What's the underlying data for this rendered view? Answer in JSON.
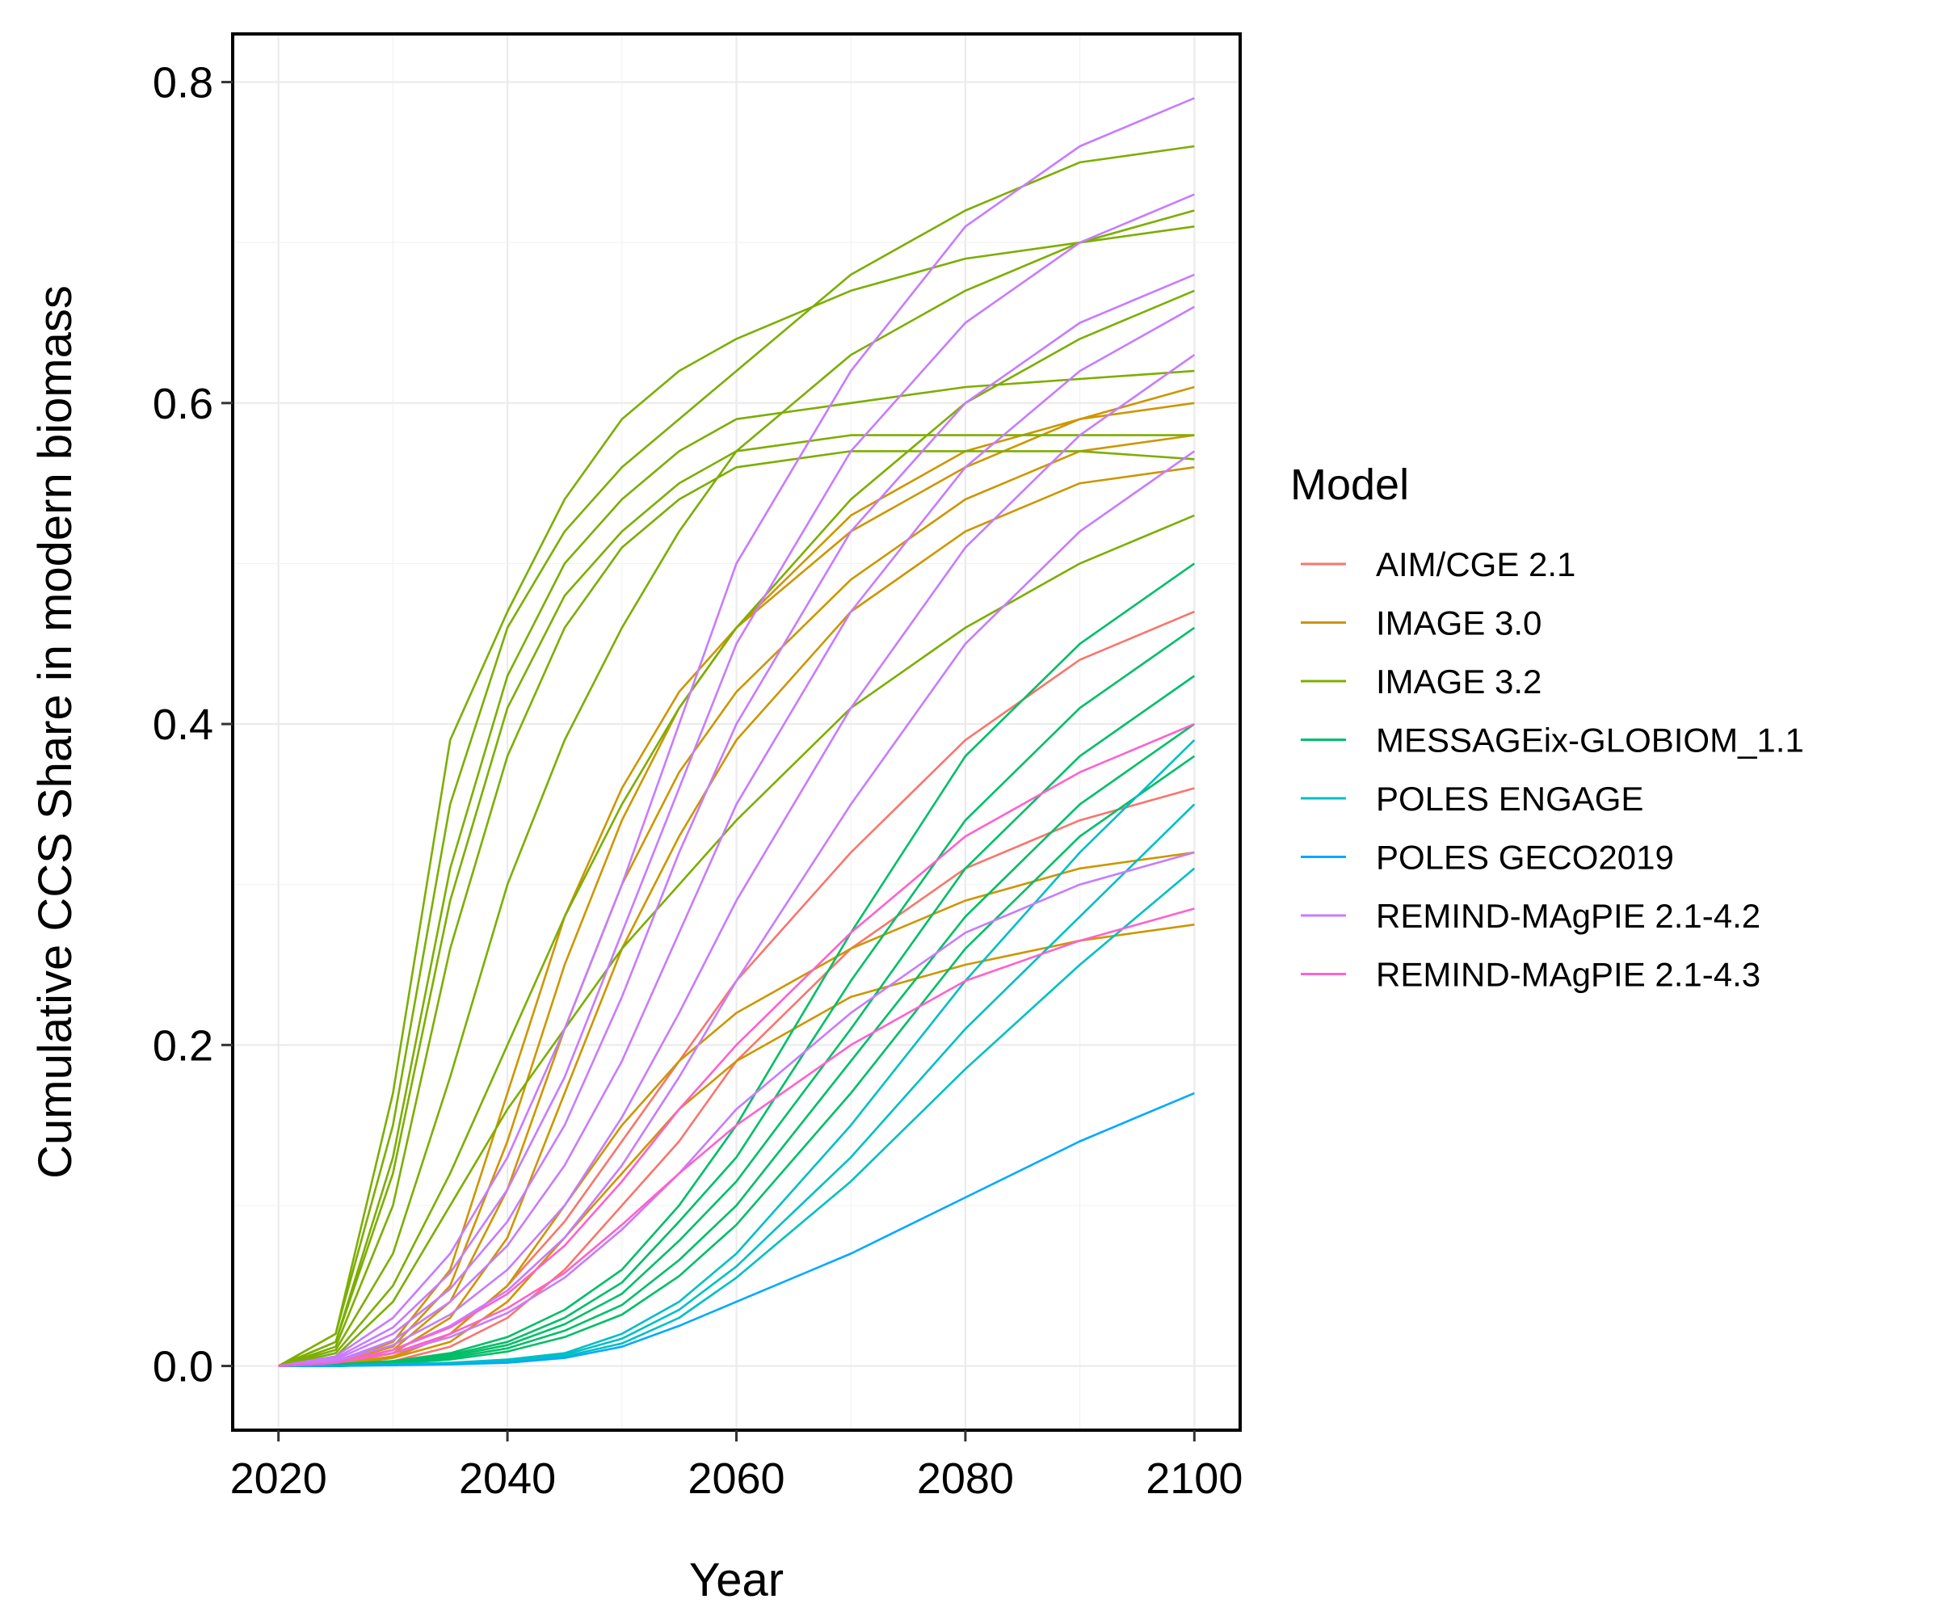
{
  "chart_data": {
    "type": "line",
    "title": "",
    "xlabel": "Year",
    "ylabel": "Cumulative CCS Share in modern biomass",
    "xlim": [
      2016,
      2104
    ],
    "ylim": [
      -0.04,
      0.83
    ],
    "xticks": [
      2020,
      2040,
      2060,
      2080,
      2100
    ],
    "yticks": [
      0.0,
      0.2,
      0.4,
      0.6,
      0.8
    ],
    "xtick_labels": [
      "2020",
      "2040",
      "2060",
      "2080",
      "2100"
    ],
    "ytick_labels": [
      "0.0",
      "0.2",
      "0.4",
      "0.6",
      "0.8"
    ],
    "grid": true,
    "legend": {
      "title": "Model",
      "position": "right",
      "entries": [
        {
          "name": "AIM/CGE 2.1",
          "color": "#F8766D"
        },
        {
          "name": "IMAGE 3.0",
          "color": "#CD9600"
        },
        {
          "name": "IMAGE 3.2",
          "color": "#7CAE00"
        },
        {
          "name": "MESSAGEix-GLOBIOM_1.1",
          "color": "#00BE67"
        },
        {
          "name": "POLES ENGAGE",
          "color": "#00BFC4"
        },
        {
          "name": "POLES GECO2019",
          "color": "#00A9FF"
        },
        {
          "name": "REMIND-MAgPIE 2.1-4.2",
          "color": "#C77CFF"
        },
        {
          "name": "REMIND-MAgPIE 2.1-4.3",
          "color": "#FF61CC"
        }
      ]
    },
    "x": [
      2020,
      2025,
      2030,
      2035,
      2040,
      2045,
      2050,
      2055,
      2060,
      2070,
      2080,
      2090,
      2100
    ],
    "series": [
      {
        "name": "AIM/CGE 2.1",
        "color": "#F8766D",
        "values": [
          0,
          0,
          0.005,
          0.02,
          0.05,
          0.09,
          0.14,
          0.19,
          0.24,
          0.32,
          0.39,
          0.44,
          0.47
        ]
      },
      {
        "name": "AIM/CGE 2.1",
        "color": "#F8766D",
        "values": [
          0,
          0,
          0.003,
          0.012,
          0.03,
          0.06,
          0.1,
          0.14,
          0.19,
          0.26,
          0.31,
          0.34,
          0.36
        ]
      },
      {
        "name": "IMAGE 3.0",
        "color": "#CD9600",
        "values": [
          0,
          0.002,
          0.015,
          0.06,
          0.17,
          0.28,
          0.36,
          0.42,
          0.46,
          0.52,
          0.56,
          0.59,
          0.61
        ]
      },
      {
        "name": "IMAGE 3.0",
        "color": "#CD9600",
        "values": [
          0,
          0.002,
          0.012,
          0.05,
          0.14,
          0.25,
          0.34,
          0.41,
          0.46,
          0.53,
          0.57,
          0.59,
          0.6
        ]
      },
      {
        "name": "IMAGE 3.0",
        "color": "#CD9600",
        "values": [
          0,
          0.001,
          0.01,
          0.04,
          0.11,
          0.21,
          0.3,
          0.37,
          0.42,
          0.49,
          0.54,
          0.57,
          0.58
        ]
      },
      {
        "name": "IMAGE 3.0",
        "color": "#CD9600",
        "values": [
          0,
          0.001,
          0.008,
          0.03,
          0.08,
          0.17,
          0.26,
          0.33,
          0.39,
          0.47,
          0.52,
          0.55,
          0.56
        ]
      },
      {
        "name": "IMAGE 3.0",
        "color": "#CD9600",
        "values": [
          0,
          0.001,
          0.006,
          0.02,
          0.05,
          0.1,
          0.15,
          0.19,
          0.22,
          0.26,
          0.29,
          0.31,
          0.32
        ]
      },
      {
        "name": "IMAGE 3.0",
        "color": "#CD9600",
        "values": [
          0,
          0.001,
          0.005,
          0.015,
          0.04,
          0.08,
          0.12,
          0.16,
          0.19,
          0.23,
          0.25,
          0.265,
          0.275
        ]
      },
      {
        "name": "IMAGE 3.2",
        "color": "#7CAE00",
        "values": [
          0,
          0.02,
          0.17,
          0.39,
          0.47,
          0.54,
          0.59,
          0.62,
          0.64,
          0.67,
          0.69,
          0.7,
          0.71
        ]
      },
      {
        "name": "IMAGE 3.2",
        "color": "#7CAE00",
        "values": [
          0,
          0.02,
          0.15,
          0.35,
          0.46,
          0.52,
          0.56,
          0.59,
          0.62,
          0.68,
          0.72,
          0.75,
          0.76
        ]
      },
      {
        "name": "IMAGE 3.2",
        "color": "#7CAE00",
        "values": [
          0,
          0.015,
          0.13,
          0.31,
          0.43,
          0.5,
          0.54,
          0.57,
          0.59,
          0.6,
          0.61,
          0.615,
          0.62
        ]
      },
      {
        "name": "IMAGE 3.2",
        "color": "#7CAE00",
        "values": [
          0,
          0.015,
          0.12,
          0.29,
          0.41,
          0.48,
          0.52,
          0.55,
          0.57,
          0.58,
          0.58,
          0.58,
          0.58
        ]
      },
      {
        "name": "IMAGE 3.2",
        "color": "#7CAE00",
        "values": [
          0,
          0.012,
          0.1,
          0.26,
          0.38,
          0.46,
          0.51,
          0.54,
          0.56,
          0.57,
          0.57,
          0.57,
          0.565
        ]
      },
      {
        "name": "IMAGE 3.2",
        "color": "#7CAE00",
        "values": [
          0,
          0.01,
          0.07,
          0.18,
          0.3,
          0.39,
          0.46,
          0.52,
          0.57,
          0.63,
          0.67,
          0.7,
          0.72
        ]
      },
      {
        "name": "IMAGE 3.2",
        "color": "#7CAE00",
        "values": [
          0,
          0.008,
          0.05,
          0.12,
          0.2,
          0.28,
          0.35,
          0.41,
          0.46,
          0.54,
          0.6,
          0.64,
          0.67
        ]
      },
      {
        "name": "IMAGE 3.2",
        "color": "#7CAE00",
        "values": [
          0,
          0.006,
          0.04,
          0.1,
          0.16,
          0.21,
          0.26,
          0.3,
          0.34,
          0.41,
          0.46,
          0.5,
          0.53
        ]
      },
      {
        "name": "MESSAGEix-GLOBIOM_1.1",
        "color": "#00BE67",
        "values": [
          0,
          0.001,
          0.003,
          0.008,
          0.018,
          0.035,
          0.06,
          0.1,
          0.15,
          0.27,
          0.38,
          0.45,
          0.5
        ]
      },
      {
        "name": "MESSAGEix-GLOBIOM_1.1",
        "color": "#00BE67",
        "values": [
          0,
          0.001,
          0.003,
          0.007,
          0.015,
          0.03,
          0.052,
          0.09,
          0.13,
          0.24,
          0.34,
          0.41,
          0.46
        ]
      },
      {
        "name": "MESSAGEix-GLOBIOM_1.1",
        "color": "#00BE67",
        "values": [
          0,
          0.0008,
          0.002,
          0.006,
          0.013,
          0.026,
          0.045,
          0.078,
          0.115,
          0.21,
          0.31,
          0.38,
          0.43
        ]
      },
      {
        "name": "MESSAGEix-GLOBIOM_1.1",
        "color": "#00BE67",
        "values": [
          0,
          0.0006,
          0.002,
          0.005,
          0.011,
          0.022,
          0.038,
          0.066,
          0.1,
          0.19,
          0.28,
          0.35,
          0.4
        ]
      },
      {
        "name": "MESSAGEix-GLOBIOM_1.1",
        "color": "#00BE67",
        "values": [
          0,
          0.0005,
          0.0015,
          0.004,
          0.009,
          0.018,
          0.032,
          0.056,
          0.088,
          0.17,
          0.26,
          0.33,
          0.38
        ]
      },
      {
        "name": "POLES ENGAGE",
        "color": "#00BFC4",
        "values": [
          0,
          0,
          0.001,
          0.002,
          0.004,
          0.008,
          0.02,
          0.04,
          0.07,
          0.15,
          0.24,
          0.32,
          0.39
        ]
      },
      {
        "name": "POLES ENGAGE",
        "color": "#00BFC4",
        "values": [
          0,
          0,
          0.001,
          0.002,
          0.003,
          0.007,
          0.017,
          0.035,
          0.062,
          0.13,
          0.21,
          0.28,
          0.35
        ]
      },
      {
        "name": "POLES ENGAGE",
        "color": "#00BFC4",
        "values": [
          0,
          0,
          0.0008,
          0.0015,
          0.003,
          0.006,
          0.014,
          0.03,
          0.055,
          0.115,
          0.185,
          0.25,
          0.31
        ]
      },
      {
        "name": "POLES GECO2019",
        "color": "#00A9FF",
        "values": [
          0,
          0,
          0.0005,
          0.001,
          0.002,
          0.005,
          0.012,
          0.025,
          0.04,
          0.07,
          0.105,
          0.14,
          0.17
        ]
      },
      {
        "name": "REMIND-MAgPIE 2.1-4.2",
        "color": "#C77CFF",
        "values": [
          0,
          0.006,
          0.03,
          0.07,
          0.13,
          0.21,
          0.3,
          0.4,
          0.5,
          0.62,
          0.71,
          0.76,
          0.79
        ]
      },
      {
        "name": "REMIND-MAgPIE 2.1-4.2",
        "color": "#C77CFF",
        "values": [
          0,
          0.005,
          0.024,
          0.058,
          0.11,
          0.18,
          0.27,
          0.36,
          0.45,
          0.57,
          0.65,
          0.7,
          0.73
        ]
      },
      {
        "name": "REMIND-MAgPIE 2.1-4.2",
        "color": "#C77CFF",
        "values": [
          0,
          0.004,
          0.02,
          0.048,
          0.09,
          0.15,
          0.23,
          0.32,
          0.4,
          0.52,
          0.6,
          0.65,
          0.68
        ]
      },
      {
        "name": "REMIND-MAgPIE 2.1-4.2",
        "color": "#C77CFF",
        "values": [
          0,
          0.003,
          0.016,
          0.04,
          0.075,
          0.125,
          0.19,
          0.27,
          0.35,
          0.47,
          0.56,
          0.62,
          0.66
        ]
      },
      {
        "name": "REMIND-MAgPIE 2.1-4.2",
        "color": "#C77CFF",
        "values": [
          0,
          0.003,
          0.013,
          0.032,
          0.06,
          0.1,
          0.155,
          0.22,
          0.29,
          0.41,
          0.51,
          0.58,
          0.63
        ]
      },
      {
        "name": "REMIND-MAgPIE 2.1-4.2",
        "color": "#C77CFF",
        "values": [
          0,
          0.002,
          0.01,
          0.025,
          0.047,
          0.08,
          0.125,
          0.18,
          0.24,
          0.35,
          0.45,
          0.52,
          0.57
        ]
      },
      {
        "name": "REMIND-MAgPIE 2.1-4.2",
        "color": "#C77CFF",
        "values": [
          0,
          0.002,
          0.008,
          0.018,
          0.033,
          0.055,
          0.085,
          0.12,
          0.16,
          0.22,
          0.27,
          0.3,
          0.32
        ]
      },
      {
        "name": "REMIND-MAgPIE 2.1-4.3",
        "color": "#FF61CC",
        "values": [
          0,
          0.002,
          0.01,
          0.024,
          0.045,
          0.075,
          0.115,
          0.16,
          0.2,
          0.27,
          0.33,
          0.37,
          0.4
        ]
      },
      {
        "name": "REMIND-MAgPIE 2.1-4.3",
        "color": "#FF61CC",
        "values": [
          0,
          0.002,
          0.008,
          0.02,
          0.036,
          0.058,
          0.088,
          0.12,
          0.15,
          0.2,
          0.24,
          0.265,
          0.285
        ]
      }
    ]
  }
}
